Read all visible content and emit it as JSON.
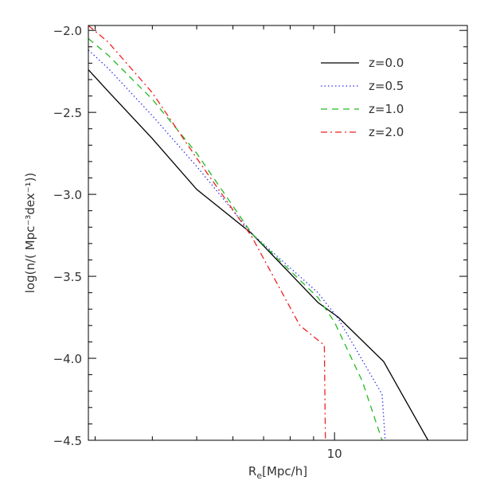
{
  "chart_data": {
    "type": "line",
    "xlabel_base": "R",
    "xlabel_sub": "e",
    "xlabel_rest": "[Mpc/h]",
    "ylabel": "log(n/( Mpc⁻³dex⁻¹))",
    "x_scale": "log",
    "xlim": [
      2.9,
      19.5
    ],
    "ylim": [
      -4.5,
      -1.97
    ],
    "x_ticks": [
      10
    ],
    "x_tick_labels": [
      "10"
    ],
    "x_minor_ticks": [
      3,
      4,
      5,
      6,
      7,
      8,
      9,
      20
    ],
    "y_ticks": [
      -2.0,
      -2.5,
      -3.0,
      -3.5,
      -4.0,
      -4.5
    ],
    "y_tick_labels": [
      "−2.0",
      "−2.5",
      "−3.0",
      "−3.5",
      "−4.0",
      "−4.5"
    ],
    "legend_position": "top-right",
    "series": [
      {
        "name": "z=0.0",
        "color": "#000000",
        "dash": "solid",
        "points": [
          [
            2.9,
            -2.24
          ],
          [
            3.2,
            -2.37
          ],
          [
            4.0,
            -2.66
          ],
          [
            5.0,
            -2.97
          ],
          [
            6.6,
            -3.24
          ],
          [
            9.2,
            -3.66
          ],
          [
            10.2,
            -3.75
          ],
          [
            12.8,
            -4.02
          ],
          [
            16.0,
            -4.5
          ]
        ]
      },
      {
        "name": "z=0.5",
        "color": "#3333ee",
        "dash": "dotted",
        "points": [
          [
            2.9,
            -2.12
          ],
          [
            3.2,
            -2.23
          ],
          [
            4.0,
            -2.52
          ],
          [
            5.0,
            -2.83
          ],
          [
            6.6,
            -3.24
          ],
          [
            9.2,
            -3.6
          ],
          [
            10.2,
            -3.76
          ],
          [
            12.7,
            -4.22
          ],
          [
            12.9,
            -4.5
          ]
        ]
      },
      {
        "name": "z=1.0",
        "color": "#22bb22",
        "dash": "dashed",
        "points": [
          [
            2.9,
            -2.05
          ],
          [
            3.2,
            -2.15
          ],
          [
            4.0,
            -2.42
          ],
          [
            5.0,
            -2.75
          ],
          [
            6.6,
            -3.24
          ],
          [
            9.2,
            -3.63
          ],
          [
            10.0,
            -3.78
          ],
          [
            11.5,
            -4.14
          ],
          [
            12.7,
            -4.5
          ]
        ]
      },
      {
        "name": "z=2.0",
        "color": "#ee2222",
        "dash": "dashdot",
        "points": [
          [
            2.9,
            -1.97
          ],
          [
            3.2,
            -2.07
          ],
          [
            4.0,
            -2.38
          ],
          [
            5.0,
            -2.78
          ],
          [
            6.6,
            -3.26
          ],
          [
            8.4,
            -3.8
          ],
          [
            9.5,
            -3.92
          ],
          [
            9.55,
            -4.5
          ]
        ]
      }
    ]
  }
}
